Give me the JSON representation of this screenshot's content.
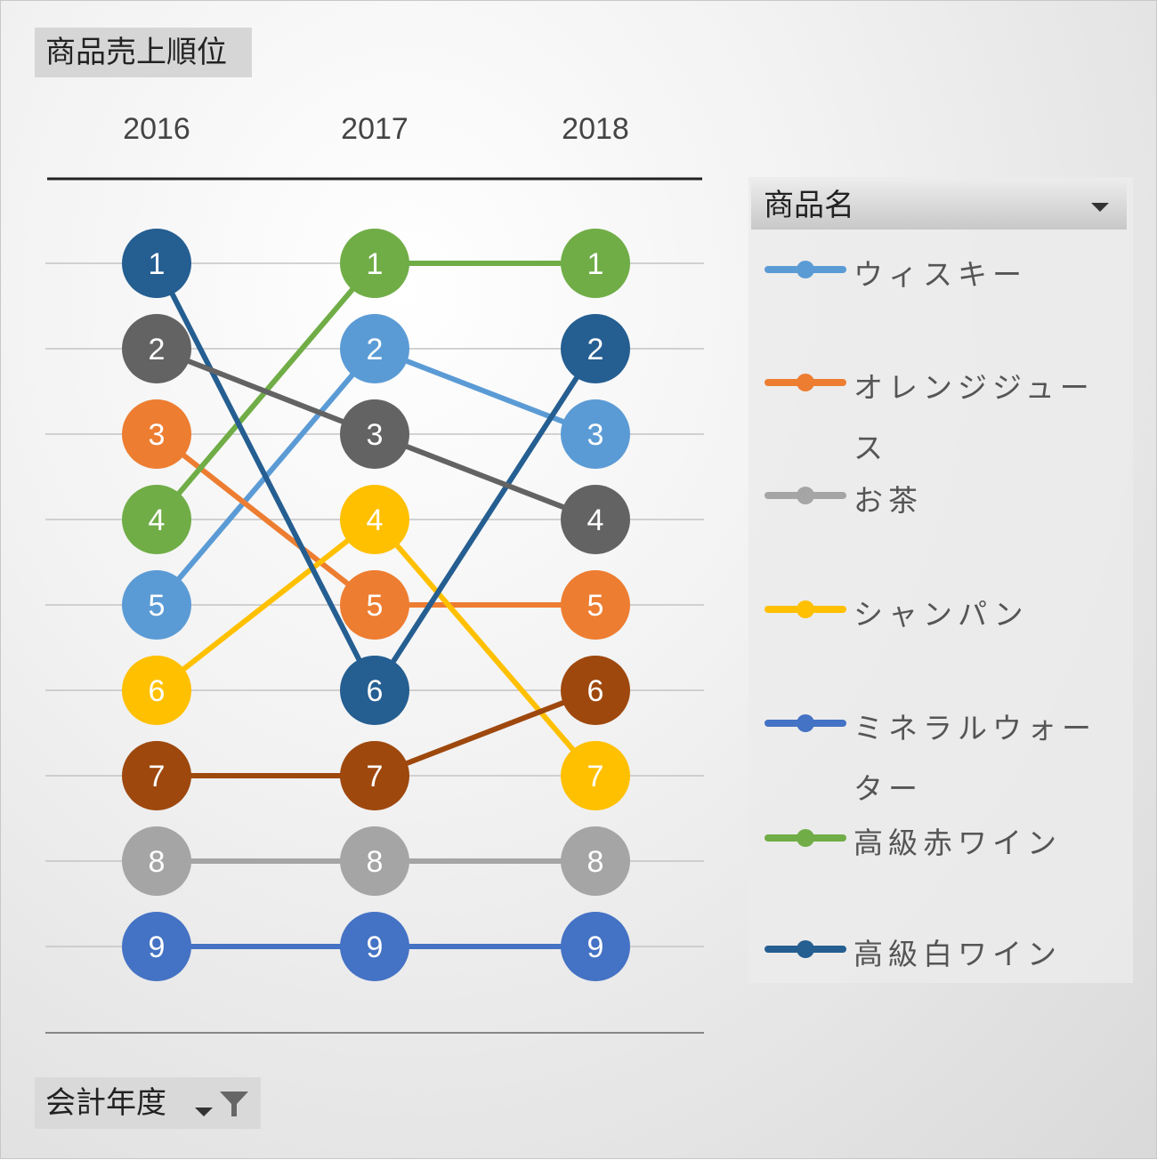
{
  "chart_data": {
    "type": "line",
    "title": "商品売上順位",
    "categories": [
      "2016",
      "2017",
      "2018"
    ],
    "ylim": [
      1,
      9
    ],
    "y_reversed": true,
    "grid": true,
    "legend_position": "right",
    "legend_title": "商品名",
    "series": [
      {
        "name": "ウィスキー",
        "color": "#5B9BD5",
        "values": [
          5,
          2,
          3
        ]
      },
      {
        "name": "オレンジジュース",
        "color": "#ED7D31",
        "values": [
          3,
          5,
          5
        ]
      },
      {
        "name": "お茶",
        "color": "#A5A5A5",
        "values": [
          8,
          8,
          8
        ]
      },
      {
        "name": "シャンパン",
        "color": "#FFC000",
        "values": [
          6,
          4,
          7
        ]
      },
      {
        "name": "ミネラルウォーター",
        "color": "#4472C4",
        "values": [
          9,
          9,
          9
        ]
      },
      {
        "name": "高級赤ワイン",
        "color": "#70AD47",
        "values": [
          4,
          1,
          1
        ]
      },
      {
        "name": "高級白ワイン",
        "color": "#255E91",
        "values": [
          1,
          6,
          2
        ]
      },
      {
        "color": "#636363",
        "values": [
          2,
          3,
          4
        ]
      },
      {
        "color": "#9E480E",
        "values": [
          7,
          7,
          6
        ]
      }
    ]
  },
  "filter": {
    "label": "会計年度",
    "icon": "funnel-icon"
  }
}
